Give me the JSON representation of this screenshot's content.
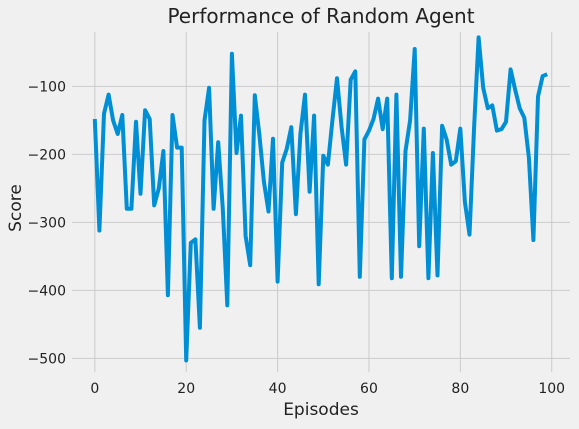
{
  "chart_data": {
    "type": "line",
    "title": "Performance of Random Agent",
    "xlabel": "Episodes",
    "ylabel": "Score",
    "x_ticks": [
      0,
      20,
      40,
      60,
      80,
      100
    ],
    "y_ticks": [
      -500,
      -400,
      -300,
      -200,
      -100
    ],
    "x_tick_labels": [
      "0",
      "20",
      "40",
      "60",
      "80",
      "100"
    ],
    "y_tick_labels": [
      "−500",
      "−400",
      "−300",
      "−200",
      "−100"
    ],
    "xlim": [
      -5,
      104
    ],
    "ylim": [
      -520,
      -20
    ],
    "grid": true,
    "legend": false,
    "series": [
      {
        "color": "#008fd5",
        "x": [
          0,
          1,
          2,
          3,
          4,
          5,
          6,
          7,
          8,
          9,
          10,
          11,
          12,
          13,
          14,
          15,
          16,
          17,
          18,
          19,
          20,
          21,
          22,
          23,
          24,
          25,
          26,
          27,
          28,
          29,
          30,
          31,
          32,
          33,
          34,
          35,
          36,
          37,
          38,
          39,
          40,
          41,
          42,
          43,
          44,
          45,
          46,
          47,
          48,
          49,
          50,
          51,
          52,
          53,
          54,
          55,
          56,
          57,
          58,
          59,
          60,
          61,
          62,
          63,
          64,
          65,
          66,
          67,
          68,
          69,
          70,
          71,
          72,
          73,
          74,
          75,
          76,
          77,
          78,
          79,
          80,
          81,
          82,
          83,
          84,
          85,
          86,
          87,
          88,
          89,
          90,
          91,
          92,
          93,
          94,
          95,
          96,
          97,
          98,
          99
        ],
        "values": [
          -148,
          -312,
          -140,
          -112,
          -150,
          -170,
          -142,
          -280,
          -280,
          -152,
          -258,
          -135,
          -148,
          -275,
          -250,
          -195,
          -407,
          -142,
          -190,
          -190,
          -503,
          -330,
          -325,
          -455,
          -150,
          -102,
          -280,
          -182,
          -280,
          -422,
          -52,
          -198,
          -143,
          -320,
          -363,
          -113,
          -170,
          -240,
          -284,
          -177,
          -387,
          -212,
          -192,
          -160,
          -288,
          -170,
          -112,
          -255,
          -143,
          -391,
          -202,
          -215,
          -150,
          -88,
          -160,
          -215,
          -90,
          -78,
          -380,
          -178,
          -165,
          -148,
          -118,
          -163,
          -118,
          -382,
          -112,
          -380,
          -195,
          -150,
          -45,
          -335,
          -162,
          -382,
          -198,
          -378,
          -158,
          -178,
          -215,
          -210,
          -162,
          -270,
          -318,
          -160,
          -28,
          -102,
          -132,
          -128,
          -165,
          -163,
          -152,
          -75,
          -105,
          -132,
          -146,
          -205,
          -326,
          -115,
          -85,
          -82
        ]
      }
    ]
  }
}
